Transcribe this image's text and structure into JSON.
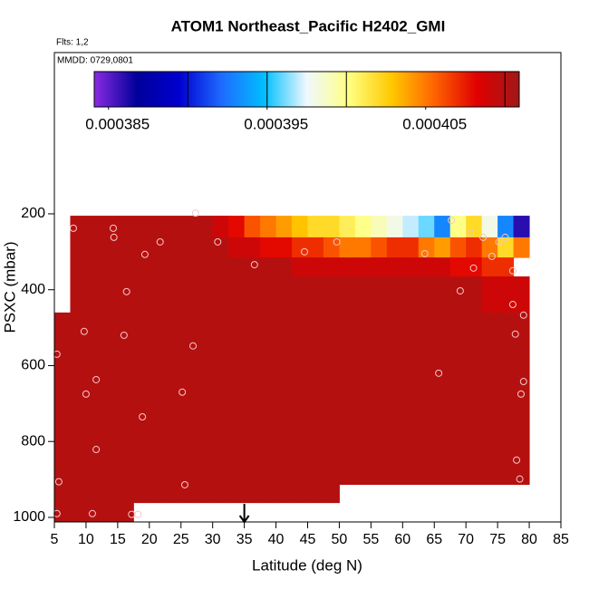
{
  "chart_data": {
    "type": "curtain",
    "title": "ATOM1 Northeast_Pacific H2402_GMI",
    "subtitle": "Flts: 1,2",
    "annotation": "MMDD: 0729,0801",
    "xlabel": "Latitude (deg N)",
    "ylabel": "PSXC (mbar)",
    "xlim": [
      5,
      85
    ],
    "ylim": [
      1012,
      -225
    ],
    "xticks": [
      5,
      10,
      15,
      20,
      25,
      30,
      35,
      40,
      45,
      50,
      55,
      60,
      65,
      70,
      75,
      80,
      85
    ],
    "yticks": [
      200,
      400,
      600,
      800,
      1000
    ],
    "lat_edges": [
      5,
      7.5,
      10,
      12.5,
      15,
      17.5,
      20,
      22.5,
      25,
      27.5,
      30,
      32.5,
      35,
      37.5,
      40,
      42.5,
      45,
      47.5,
      50,
      52.5,
      55,
      57.5,
      60,
      62.5,
      65,
      67.5,
      70,
      72.5,
      75,
      77.5,
      80
    ],
    "pressure_edges": [
      205,
      262,
      315,
      365,
      460,
      560,
      660,
      760,
      860,
      913,
      961,
      1012
    ],
    "matrix": [
      [
        null,
        0.00041,
        0.00041,
        0.00041,
        0.00041,
        0.00041,
        0.00041,
        0.00041,
        0.00041,
        0.00041,
        0.000409,
        0.000408,
        0.000406,
        0.000405,
        0.000404,
        0.000403,
        0.000402,
        0.000402,
        0.000401,
        0.0004,
        0.000399,
        0.000398,
        0.000397,
        0.000396,
        0.000393,
        0.0004,
        0.000402,
        0.000398,
        0.000393,
        0.000386
      ],
      [
        null,
        0.00041,
        0.00041,
        0.00041,
        0.00041,
        0.00041,
        0.00041,
        0.00041,
        0.00041,
        0.00041,
        0.00041,
        0.000409,
        0.000409,
        0.000408,
        0.000408,
        0.000407,
        0.000407,
        0.000406,
        0.000405,
        0.000405,
        0.000406,
        0.000407,
        0.000407,
        0.000405,
        0.000404,
        0.000406,
        0.000407,
        0.000405,
        0.000402,
        0.000405
      ],
      [
        null,
        0.00041,
        0.00041,
        0.00041,
        0.00041,
        0.00041,
        0.00041,
        0.00041,
        0.00041,
        0.00041,
        0.00041,
        0.00041,
        0.00041,
        0.00041,
        0.00041,
        0.000409,
        0.000409,
        0.000409,
        0.000409,
        0.000409,
        0.000409,
        0.000409,
        0.000409,
        0.000409,
        0.000409,
        0.000408,
        0.000408,
        0.000407,
        0.000407,
        null
      ],
      [
        null,
        0.00041,
        0.00041,
        0.00041,
        0.00041,
        0.00041,
        0.00041,
        0.00041,
        0.00041,
        0.00041,
        0.00041,
        0.00041,
        0.00041,
        0.00041,
        0.00041,
        0.00041,
        0.00041,
        0.00041,
        0.00041,
        0.00041,
        0.00041,
        0.00041,
        0.00041,
        0.00041,
        0.00041,
        0.00041,
        0.00041,
        0.000409,
        0.000409,
        0.000409
      ],
      [
        0.00041,
        0.00041,
        0.00041,
        0.00041,
        0.00041,
        0.00041,
        0.00041,
        0.00041,
        0.00041,
        0.00041,
        0.00041,
        0.00041,
        0.00041,
        0.00041,
        0.00041,
        0.00041,
        0.00041,
        0.00041,
        0.00041,
        0.00041,
        0.00041,
        0.00041,
        0.00041,
        0.00041,
        0.00041,
        0.00041,
        0.00041,
        0.00041,
        0.00041,
        0.00041
      ],
      [
        0.00041,
        0.00041,
        0.00041,
        0.00041,
        0.00041,
        0.00041,
        0.00041,
        0.00041,
        0.00041,
        0.00041,
        0.00041,
        0.00041,
        0.00041,
        0.00041,
        0.00041,
        0.00041,
        0.00041,
        0.00041,
        0.00041,
        0.00041,
        0.00041,
        0.00041,
        0.00041,
        0.00041,
        0.00041,
        0.00041,
        0.00041,
        0.00041,
        0.00041,
        0.00041
      ],
      [
        0.00041,
        0.00041,
        0.00041,
        0.00041,
        0.00041,
        0.00041,
        0.00041,
        0.00041,
        0.00041,
        0.00041,
        0.00041,
        0.00041,
        0.00041,
        0.00041,
        0.00041,
        0.00041,
        0.00041,
        0.00041,
        0.00041,
        0.00041,
        0.00041,
        0.00041,
        0.00041,
        0.00041,
        0.00041,
        0.00041,
        0.00041,
        0.00041,
        0.00041,
        0.00041
      ],
      [
        0.00041,
        0.00041,
        0.00041,
        0.00041,
        0.00041,
        0.00041,
        0.00041,
        0.00041,
        0.00041,
        0.00041,
        0.00041,
        0.00041,
        0.00041,
        0.00041,
        0.00041,
        0.00041,
        0.00041,
        0.00041,
        0.00041,
        0.00041,
        0.00041,
        0.00041,
        0.00041,
        0.00041,
        0.00041,
        0.00041,
        0.00041,
        0.00041,
        0.00041,
        0.00041
      ],
      [
        0.00041,
        0.00041,
        0.00041,
        0.00041,
        0.00041,
        0.00041,
        0.00041,
        0.00041,
        0.00041,
        0.00041,
        0.00041,
        0.00041,
        0.00041,
        0.00041,
        0.00041,
        0.00041,
        0.00041,
        0.00041,
        0.00041,
        0.00041,
        0.00041,
        0.00041,
        0.00041,
        0.00041,
        0.00041,
        0.00041,
        0.00041,
        0.00041,
        0.00041,
        0.00041
      ],
      [
        0.00041,
        0.00041,
        0.00041,
        0.00041,
        0.00041,
        0.00041,
        0.00041,
        0.00041,
        0.00041,
        0.00041,
        0.00041,
        0.00041,
        0.00041,
        0.00041,
        0.00041,
        0.00041,
        0.00041,
        0.00041,
        null,
        null,
        null,
        null,
        null,
        null,
        null,
        null,
        null,
        null,
        null,
        null
      ],
      [
        0.00041,
        0.00041,
        0.00041,
        0.00041,
        0.00041,
        null,
        null,
        null,
        null,
        null,
        null,
        null,
        null,
        null,
        null,
        null,
        null,
        null,
        null,
        null,
        null,
        null,
        null,
        null,
        null,
        null,
        null,
        null,
        null,
        null
      ]
    ],
    "colorbar": {
      "lim": [
        0.0003841,
        0.0004109
      ],
      "ticks": [
        0.000385,
        0.000395,
        0.000405
      ],
      "lines": [
        0.00039,
        0.000395,
        0.0004,
        0.00041
      ],
      "colors": [
        "#8a2be2",
        "#00009a",
        "#0000d0",
        "#1e6bff",
        "#00bfff",
        "#f0f8ff",
        "#ffff80",
        "#ffc800",
        "#ff6400",
        "#e00000",
        "#a01818"
      ]
    },
    "points": {
      "color": "#f4c8c8",
      "x": [
        8.0,
        14.3,
        14.4,
        19.3,
        21.7,
        30.8,
        36.6,
        44.5,
        49.6,
        63.5,
        67.7,
        70.7,
        72.7,
        74.1,
        75.2,
        76.2,
        71.2,
        77.4,
        69.1,
        16.4,
        77.4,
        79.1,
        9.7,
        16.0,
        26.9,
        77.8,
        5.4,
        65.7,
        79.1,
        11.6,
        10.0,
        25.2,
        78.7,
        18.9,
        11.6,
        78.0,
        78.5,
        5.7,
        25.6,
        5.4,
        11.0,
        17.2,
        18.2,
        27.3
      ],
      "y": [
        238,
        238,
        262,
        307,
        274,
        274,
        334,
        300,
        274,
        305,
        217,
        250,
        262,
        312,
        274,
        262,
        343,
        350,
        403,
        405,
        439,
        467,
        510,
        520,
        548,
        517,
        570,
        620,
        642,
        637,
        675,
        670,
        675,
        735,
        821,
        849,
        899,
        906,
        914,
        990,
        990,
        992,
        992,
        198
      ]
    },
    "marker_lat": 35
  }
}
